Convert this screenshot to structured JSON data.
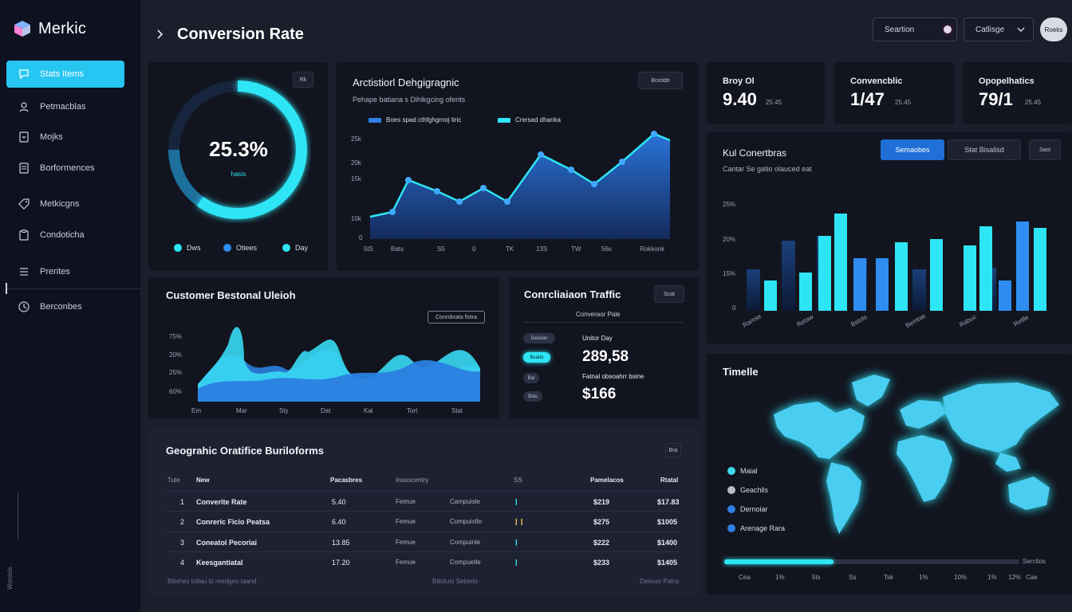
{
  "app": {
    "logo_text": "Merkic"
  },
  "sidebar": {
    "items": [
      {
        "label": "Stats Items",
        "icon": "chat-bubble-icon",
        "active": true
      },
      {
        "label": "Petmacblas",
        "icon": "user-icon"
      },
      {
        "label": "Mojks",
        "icon": "phone-icon"
      },
      {
        "label": "Borformences",
        "icon": "document-icon"
      },
      {
        "label": "Metkicgns",
        "icon": "tag-icon"
      },
      {
        "label": "Condoticha",
        "icon": "clipboard-icon"
      },
      {
        "label": "Prerites",
        "icon": "list-icon"
      },
      {
        "label": "Berconbes",
        "icon": "clock-icon"
      }
    ],
    "vertical_text": "Wordsis"
  },
  "header": {
    "title": "Conversion Rate",
    "search_label": "Seartion",
    "dropdown_label": "Catlisge",
    "avatar_label": "Roeks"
  },
  "donut": {
    "value_text": "25.3%",
    "sub_text": "hasis",
    "button": "Rk",
    "legend": [
      {
        "label": "Dws",
        "color": "#2ee5f5"
      },
      {
        "label": "Otiees",
        "color": "#2f8cf0"
      },
      {
        "label": "Day",
        "color": "#2ee5f5"
      }
    ],
    "fill_fraction": 0.6
  },
  "area1": {
    "title": "Arctistiorl Dehgigragnic",
    "subtitle": "Pehape batiana s Dihlkgcing oferits",
    "button": "Bostide",
    "legend": [
      "Boes spad cthfghgrnoj tiric",
      "Crersad dhanka"
    ],
    "y_ticks": [
      "25k",
      "20k",
      "15k",
      "10k",
      "0"
    ],
    "x_ticks": [
      "5tS",
      "Bats",
      "S5",
      "0",
      "TK",
      "13S",
      "TW",
      "56s",
      "Rokkonk"
    ]
  },
  "kpis": [
    {
      "label": "Broy Ol",
      "value": "9.40",
      "small": "25.45"
    },
    {
      "label": "Convencblic",
      "value": "1/47",
      "small": "25.45"
    },
    {
      "label": "Opopelhatics",
      "value": "79/1",
      "small": "25.45"
    }
  ],
  "bars_panel": {
    "title": "Kul Conertbras",
    "subtitle": "Cantar Se gatio olauced eat",
    "tabs": [
      "Semaobes",
      "Stat Bisalisd"
    ],
    "button": "Sast",
    "y_ticks": [
      "25%",
      "20%",
      "15%",
      "0"
    ],
    "x_ticks": [
      "Ramse",
      "Retaw",
      "Bstols",
      "Bemtae",
      "Rabuc",
      "Retlle"
    ]
  },
  "area2": {
    "title": "Customer Bestonal Uleioh",
    "button": "Conrsbrata fistra",
    "y_ticks": [
      "75%",
      "20%",
      "25%",
      "60%"
    ],
    "x_ticks": [
      "Em",
      "Mar",
      "Sty",
      "Dat",
      "Kal",
      "Tort",
      "Stal"
    ]
  },
  "traffic": {
    "title": "Conrcliaiaon Traffic",
    "button": "Scat",
    "sub": "Converaor Pale",
    "pills": [
      "Dwsiion",
      "Bsatio",
      "Bal",
      "Bias"
    ],
    "label1": "Unitor Day",
    "value1": "289,58",
    "label2": "Fatnal obsoahrr bsine",
    "value2": "$166"
  },
  "table": {
    "title": "Geograhic Oratifice Buriloforms",
    "button": "Bra",
    "columns": [
      "Tute",
      "New",
      "Pacasbres",
      "Inouscentry",
      "SS",
      "Pamelacos",
      "Rtatal"
    ],
    "rows": [
      {
        "n": "1",
        "name": "Converite Rate",
        "v1": "5.40",
        "c1": "Femue",
        "c2": "Campuisle",
        "v2": "$219",
        "v3": "$17.83"
      },
      {
        "n": "2",
        "name": "Conreric Ficio Peatsa",
        "v1": "6.40",
        "c1": "Femue",
        "c2": "Compuixtle",
        "v2": "$275",
        "v3": "$1005"
      },
      {
        "n": "3",
        "name": "Coneatol Pecoriai",
        "v1": "13.85",
        "c1": "Femue",
        "c2": "Compuinle",
        "v2": "$222",
        "v3": "$1400"
      },
      {
        "n": "4",
        "name": "Keesgantiatal",
        "v1": "17.20",
        "c1": "Femue",
        "c2": "Compuetle",
        "v2": "$233",
        "v3": "$1405"
      }
    ],
    "footer_left": "Bilishes toitau tz reedgeo taand",
    "footer_mid": "Bilistulo Sebieto",
    "footer_right": "Deleuoi Palns"
  },
  "map": {
    "title": "Timelle",
    "legend": [
      {
        "label": "Maial",
        "color": "#3fd9f2"
      },
      {
        "label": "Geachlls",
        "color": "#b8bec9"
      },
      {
        "label": "Dernoiar",
        "color": "#2f7fe6"
      },
      {
        "label": "Arenage Rara",
        "color": "#2f7fe6"
      }
    ],
    "progress": 0.37,
    "progress_label": "Sercitos",
    "x_ticks": [
      "Cea",
      "1%",
      "5ts",
      "Ss",
      "Tsk",
      "1%",
      "10%",
      "1%",
      "12%",
      "Cae"
    ]
  }
}
